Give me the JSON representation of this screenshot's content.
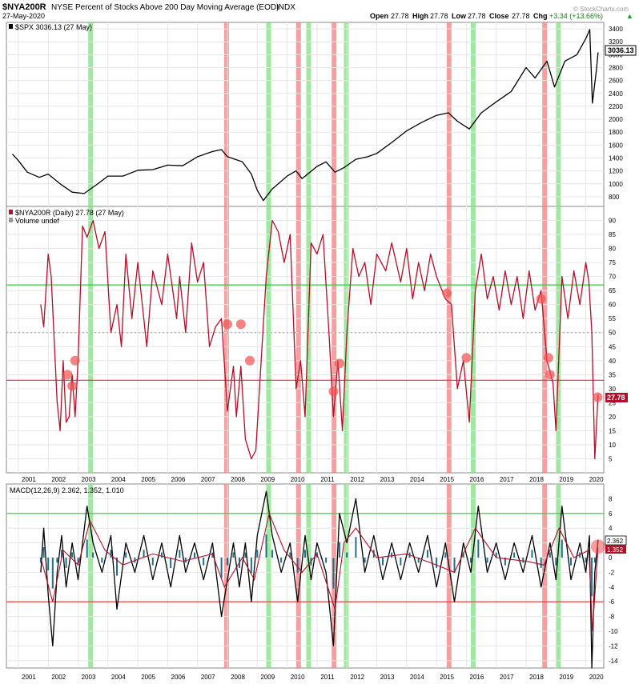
{
  "header": {
    "symbol": "$NYA200R",
    "description": "NYSE Percent of Stocks Above 200 Day Moving Average (EOD)",
    "index_tag": "INDX",
    "date": "27-May-2020",
    "open_label": "Open",
    "open": "27.78",
    "high_label": "High",
    "high": "27.78",
    "low_label": "Low",
    "low": "27.78",
    "close_label": "Close",
    "close": "27.78",
    "chg_label": "Chg",
    "chg": "+3.34 (+13.66%)",
    "chg_arrow": "▲",
    "watermark": "© StockCharts.com"
  },
  "colors": {
    "price": "#000000",
    "breadth": "#b0102a",
    "macd": "#000000",
    "macd_signal": "#b0102a",
    "histogram": "#1f6f8b",
    "green_band": "#7fe07f",
    "red_band": "#f08080",
    "green_line": "#33cc33",
    "red_line": "#e03030",
    "circle": "#f05050",
    "grid": "#e6e6e6"
  },
  "chart_data": [
    {
      "type": "line",
      "name": "spx",
      "legend": "$SPX 3036.13 (27 May)",
      "last_value_label": "3036.13",
      "x_ticks": [
        "2001",
        "2002",
        "2003",
        "2004",
        "2005",
        "2006",
        "2007",
        "2008",
        "2009",
        "2010",
        "2011",
        "2012",
        "2013",
        "2014",
        "2015",
        "2016",
        "2017",
        "2018",
        "2019",
        "2020"
      ],
      "y_ticks": [
        800,
        1000,
        1200,
        1400,
        1600,
        1800,
        2000,
        2200,
        2400,
        2600,
        2800,
        3000,
        3200,
        3400
      ],
      "ylim": [
        650,
        3500
      ],
      "x": [
        2000.8,
        2001.0,
        2001.3,
        2001.7,
        2002.0,
        2002.4,
        2002.8,
        2003.2,
        2003.6,
        2004.0,
        2004.5,
        2005.0,
        2005.5,
        2006.0,
        2006.5,
        2007.0,
        2007.5,
        2007.8,
        2008.0,
        2008.5,
        2008.8,
        2009.0,
        2009.2,
        2009.5,
        2010.0,
        2010.3,
        2010.5,
        2011.0,
        2011.3,
        2011.6,
        2011.9,
        2012.3,
        2012.7,
        2013.0,
        2013.5,
        2014.0,
        2014.5,
        2015.0,
        2015.4,
        2015.7,
        2016.1,
        2016.5,
        2017.0,
        2017.5,
        2018.0,
        2018.3,
        2018.7,
        2018.95,
        2019.3,
        2019.7,
        2020.0,
        2020.13,
        2020.22,
        2020.35,
        2020.41
      ],
      "y": [
        1460,
        1360,
        1180,
        1100,
        1150,
        1000,
        870,
        850,
        980,
        1120,
        1120,
        1210,
        1220,
        1290,
        1280,
        1420,
        1500,
        1530,
        1420,
        1340,
        1150,
        900,
        740,
        920,
        1120,
        1200,
        1080,
        1270,
        1340,
        1180,
        1250,
        1380,
        1420,
        1470,
        1640,
        1820,
        1950,
        2060,
        2100,
        1970,
        1850,
        2100,
        2270,
        2430,
        2800,
        2640,
        2900,
        2500,
        2900,
        3000,
        3250,
        3390,
        2250,
        2750,
        3036
      ]
    },
    {
      "type": "line",
      "name": "nya200r",
      "legend": "$NYA200R (Daily) 27.78 (27 May)",
      "volume_label": "Volume undef",
      "last_value_label": "27.78",
      "x_ticks": [
        "2001",
        "2002",
        "2003",
        "2004",
        "2005",
        "2006",
        "2007",
        "2008",
        "2009",
        "2010",
        "2011",
        "2012",
        "2013",
        "2014",
        "2015",
        "2016",
        "2017",
        "2018",
        "2019",
        "2020"
      ],
      "y_ticks": [
        5,
        10,
        15,
        20,
        25,
        30,
        35,
        40,
        45,
        50,
        55,
        60,
        65,
        70,
        75,
        80,
        85,
        90
      ],
      "ylim": [
        0,
        95
      ],
      "reference_lines": {
        "green": 67,
        "red": 33,
        "dotted": 50
      },
      "x": [
        2001.75,
        2001.85,
        2002.0,
        2002.1,
        2002.3,
        2002.4,
        2002.5,
        2002.6,
        2002.7,
        2002.8,
        2002.9,
        2003.0,
        2003.15,
        2003.3,
        2003.5,
        2003.7,
        2003.9,
        2004.1,
        2004.3,
        2004.45,
        2004.6,
        2004.8,
        2005.0,
        2005.3,
        2005.5,
        2005.8,
        2006.0,
        2006.3,
        2006.4,
        2006.6,
        2006.8,
        2007.0,
        2007.2,
        2007.4,
        2007.6,
        2007.8,
        2008.0,
        2008.2,
        2008.3,
        2008.45,
        2008.6,
        2008.8,
        2008.95,
        2009.1,
        2009.3,
        2009.5,
        2009.7,
        2009.9,
        2010.1,
        2010.3,
        2010.45,
        2010.6,
        2010.8,
        2011.0,
        2011.2,
        2011.4,
        2011.55,
        2011.7,
        2011.85,
        2012.0,
        2012.2,
        2012.4,
        2012.6,
        2012.8,
        2013.0,
        2013.3,
        2013.5,
        2013.8,
        2014.0,
        2014.2,
        2014.4,
        2014.6,
        2014.8,
        2015.0,
        2015.3,
        2015.5,
        2015.7,
        2015.9,
        2016.1,
        2016.3,
        2016.5,
        2016.7,
        2016.9,
        2017.1,
        2017.3,
        2017.5,
        2017.7,
        2017.9,
        2018.1,
        2018.3,
        2018.5,
        2018.7,
        2018.9,
        2019.0,
        2019.2,
        2019.4,
        2019.6,
        2019.8,
        2020.0,
        2020.1,
        2020.2,
        2020.3,
        2020.41
      ],
      "y": [
        60,
        52,
        78,
        70,
        25,
        15,
        40,
        18,
        20,
        35,
        20,
        40,
        88,
        84,
        90,
        80,
        86,
        50,
        60,
        45,
        78,
        55,
        75,
        45,
        72,
        60,
        78,
        55,
        70,
        50,
        82,
        68,
        75,
        45,
        52,
        55,
        22,
        38,
        20,
        38,
        12,
        5,
        8,
        35,
        70,
        90,
        86,
        75,
        85,
        30,
        40,
        20,
        82,
        78,
        85,
        50,
        20,
        40,
        15,
        50,
        80,
        70,
        75,
        60,
        78,
        72,
        82,
        68,
        80,
        62,
        75,
        65,
        78,
        70,
        62,
        60,
        30,
        40,
        18,
        65,
        78,
        62,
        70,
        58,
        72,
        60,
        70,
        55,
        72,
        58,
        65,
        40,
        32,
        15,
        70,
        55,
        72,
        60,
        75,
        68,
        50,
        5,
        28
      ]
    },
    {
      "type": "line",
      "name": "macd",
      "legend": "MACD(12,26,9) 2.362, 1.352, 1.010",
      "macd_value_label": "2.362",
      "signal_value_label": "1.352",
      "hist_value_label": "1.010",
      "x_ticks": [
        "2001",
        "2002",
        "2003",
        "2004",
        "2005",
        "2006",
        "2007",
        "2008",
        "2009",
        "2010",
        "2011",
        "2012",
        "2013",
        "2014",
        "2015",
        "2016",
        "2017",
        "2018",
        "2019",
        "2020"
      ],
      "y_ticks": [
        -14,
        -12,
        -10,
        -8,
        -6,
        -4,
        -2,
        0,
        2,
        4,
        6,
        8
      ],
      "ylim": [
        -15,
        10
      ],
      "reference_lines": {
        "green": 6,
        "red": -6
      },
      "x": [
        2001.75,
        2001.85,
        2002.0,
        2002.15,
        2002.3,
        2002.45,
        2002.6,
        2002.8,
        2003.0,
        2003.3,
        2003.5,
        2003.8,
        2004.1,
        2004.3,
        2004.6,
        2004.9,
        2005.2,
        2005.5,
        2005.8,
        2006.1,
        2006.4,
        2006.6,
        2006.9,
        2007.2,
        2007.5,
        2007.8,
        2008.0,
        2008.2,
        2008.4,
        2008.6,
        2008.8,
        2009.0,
        2009.3,
        2009.5,
        2009.8,
        2010.1,
        2010.35,
        2010.6,
        2010.8,
        2011.0,
        2011.3,
        2011.55,
        2011.75,
        2012.0,
        2012.3,
        2012.6,
        2012.9,
        2013.2,
        2013.5,
        2013.8,
        2014.1,
        2014.4,
        2014.7,
        2015.0,
        2015.3,
        2015.6,
        2015.9,
        2016.15,
        2016.4,
        2016.7,
        2017.0,
        2017.3,
        2017.6,
        2017.9,
        2018.2,
        2018.5,
        2018.8,
        2019.0,
        2019.2,
        2019.5,
        2019.8,
        2020.0,
        2020.12,
        2020.2,
        2020.3,
        2020.41
      ],
      "y": [
        -2,
        4,
        -5,
        -12,
        -2,
        3,
        -4,
        2,
        -3,
        7,
        2,
        -2,
        3,
        -7,
        2,
        -2,
        3,
        -3,
        2,
        -4,
        3,
        -2,
        2,
        -3,
        2,
        -8,
        -3,
        2,
        -4,
        2,
        -6,
        3,
        9,
        3,
        -2,
        2,
        -6,
        3,
        -3,
        2,
        -2,
        -12,
        6,
        2,
        8,
        -2,
        3,
        -3,
        2,
        -3,
        2,
        -2,
        3,
        -4,
        2,
        -6,
        2,
        -2,
        7,
        -2,
        2,
        -3,
        2,
        -2,
        3,
        -4,
        2,
        -3,
        7,
        -3,
        2,
        -2,
        3,
        -15,
        -2,
        2.4
      ],
      "signal_x": [
        2001.75,
        2002.15,
        2002.5,
        2003.0,
        2003.4,
        2003.9,
        2004.5,
        2005.5,
        2006.5,
        2007.5,
        2007.9,
        2008.5,
        2008.9,
        2009.4,
        2009.9,
        2010.5,
        2011.0,
        2011.6,
        2011.9,
        2012.3,
        2013.0,
        2014.0,
        2015.0,
        2015.6,
        2016.3,
        2017.0,
        2018.0,
        2018.6,
        2019.1,
        2019.6,
        2020.1,
        2020.22,
        2020.41
      ],
      "signal_y": [
        0,
        -6,
        1,
        -1,
        5,
        1,
        -1,
        0.5,
        -0.5,
        0.5,
        -4,
        0,
        -3,
        6,
        1,
        -2,
        0.5,
        -7,
        2,
        4,
        0,
        0.5,
        -1,
        -2,
        4,
        0,
        -0.5,
        -1,
        4,
        0,
        1,
        -10,
        1.35
      ]
    }
  ],
  "bands": {
    "green_years": [
      2003.42,
      2009.38,
      2010.72,
      2011.98,
      2016.23,
      2019.08
    ],
    "red_years": [
      2007.97,
      2010.38,
      2011.57,
      2015.42,
      2018.62
    ]
  },
  "markers": [
    [
      2002.65,
      35
    ],
    [
      2002.8,
      31
    ],
    [
      2002.9,
      40
    ],
    [
      2008.0,
      53
    ],
    [
      2008.45,
      53
    ],
    [
      2008.75,
      40
    ],
    [
      2011.55,
      29
    ],
    [
      2011.75,
      39
    ],
    [
      2015.35,
      64
    ],
    [
      2016.0,
      41
    ],
    [
      2018.5,
      62
    ],
    [
      2018.75,
      41
    ],
    [
      2018.8,
      35
    ],
    [
      2020.4,
      27
    ]
  ]
}
